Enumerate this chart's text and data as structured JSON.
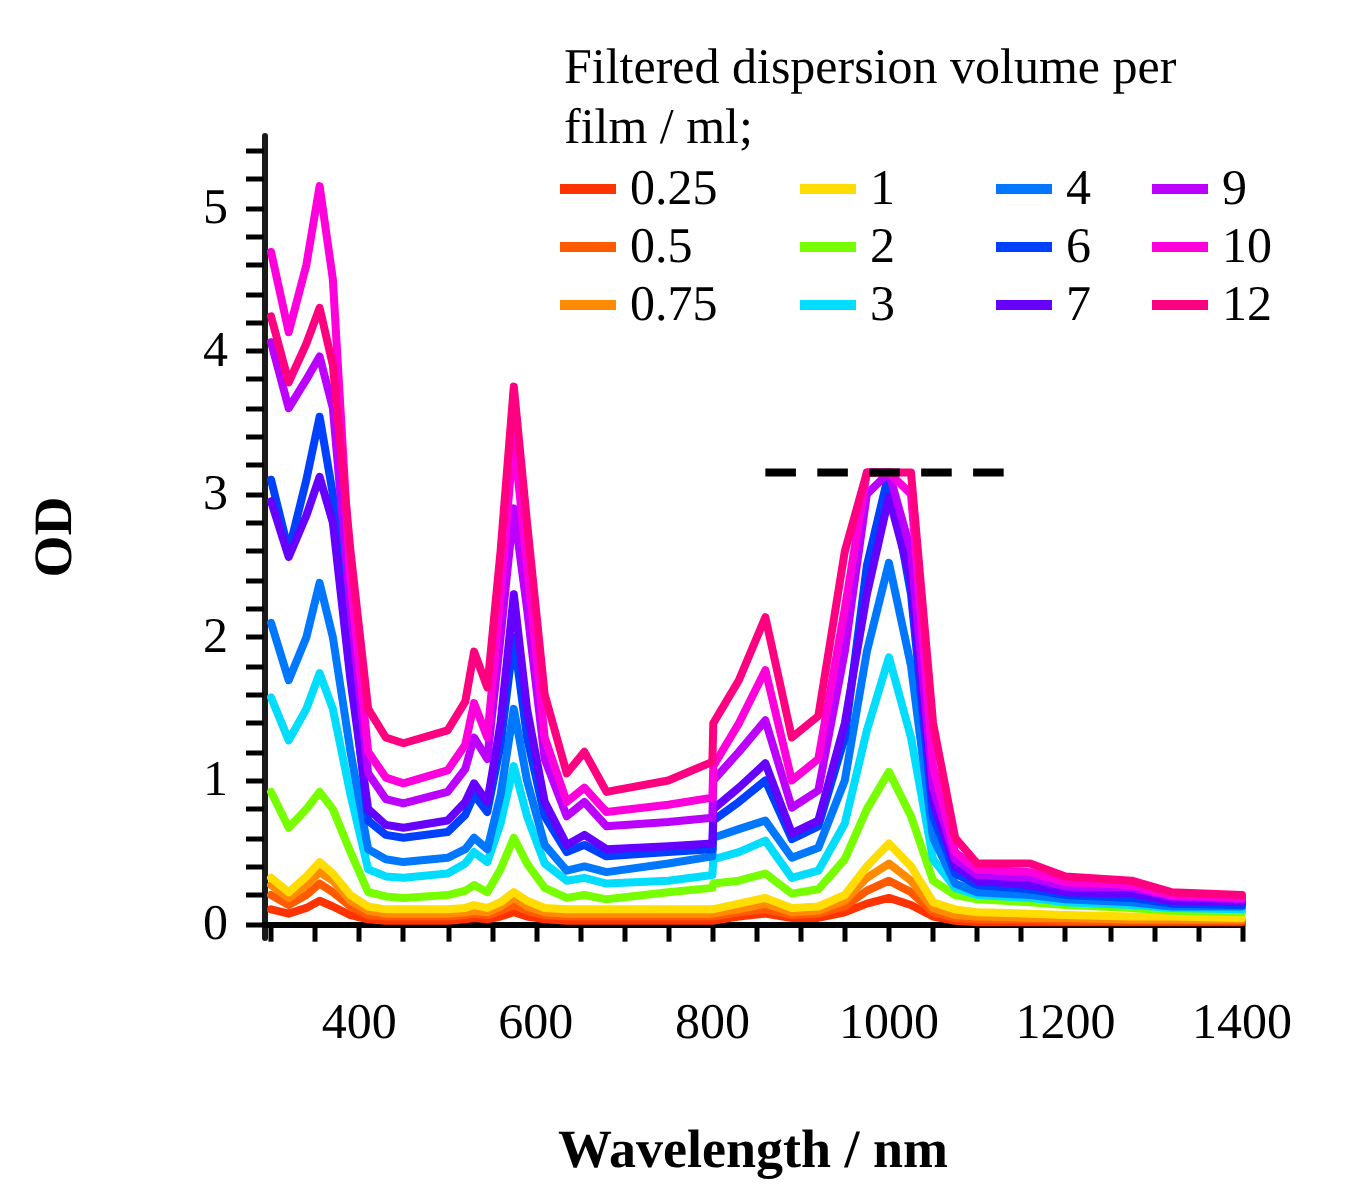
{
  "chart_data": {
    "type": "line",
    "xlabel": "Wavelength / nm",
    "ylabel": "OD",
    "legend_title": "Filtered dispersion volume per film / ml;",
    "legend": "top right",
    "grid": false,
    "marker": "none",
    "line_style": "solid",
    "x": [
      300,
      320,
      340,
      355,
      370,
      390,
      410,
      430,
      450,
      500,
      520,
      530,
      545,
      560,
      575,
      590,
      610,
      635,
      655,
      680,
      750,
      800,
      801,
      830,
      860,
      890,
      920,
      950,
      975,
      1000,
      1025,
      1050,
      1075,
      1100,
      1160,
      1200,
      1275,
      1320,
      1400
    ],
    "xlim": [
      292,
      1400
    ],
    "xticks": [
      {
        "value": 300,
        "label": null
      },
      {
        "value": 350,
        "label": null
      },
      400,
      {
        "value": 450,
        "label": null
      },
      {
        "value": 500,
        "label": null
      },
      {
        "value": 550,
        "label": null
      },
      600,
      {
        "value": 650,
        "label": null
      },
      {
        "value": 700,
        "label": null
      },
      {
        "value": 750,
        "label": null
      },
      800,
      {
        "value": 850,
        "label": null
      },
      {
        "value": 900,
        "label": null
      },
      {
        "value": 950,
        "label": null
      },
      1000,
      {
        "value": 1050,
        "label": null
      },
      {
        "value": 1100,
        "label": null
      },
      {
        "value": 1150,
        "label": null
      },
      1200,
      {
        "value": 1250,
        "label": null
      },
      {
        "value": 1300,
        "label": null
      },
      {
        "value": 1350,
        "label": null
      },
      1400
    ],
    "ylim": [
      -0.1,
      5.5
    ],
    "yticks": [
      0,
      {
        "value": 0.2,
        "label": null
      },
      {
        "value": 0.4,
        "label": null
      },
      {
        "value": 0.6,
        "label": null
      },
      {
        "value": 0.8,
        "label": null
      },
      1,
      {
        "value": 1.2,
        "label": null
      },
      {
        "value": 1.4,
        "label": null
      },
      {
        "value": 1.6,
        "label": null
      },
      {
        "value": 1.8,
        "label": null
      },
      2,
      {
        "value": 2.2,
        "label": null
      },
      {
        "value": 2.4,
        "label": null
      },
      {
        "value": 2.6,
        "label": null
      },
      {
        "value": 2.8,
        "label": null
      },
      3,
      {
        "value": 3.2,
        "label": null
      },
      {
        "value": 3.4,
        "label": null
      },
      {
        "value": 3.6,
        "label": null
      },
      {
        "value": 3.8,
        "label": null
      },
      4,
      {
        "value": 4.2,
        "label": null
      },
      {
        "value": 4.4,
        "label": null
      },
      {
        "value": 4.6,
        "label": null
      },
      {
        "value": 4.8,
        "label": null
      },
      5,
      {
        "value": 5.2,
        "label": null
      },
      {
        "value": 5.4,
        "label": null
      }
    ],
    "series": [
      {
        "name": "0.25",
        "color": "#ff3300",
        "values": [
          0.1,
          0.07,
          0.11,
          0.16,
          0.12,
          0.06,
          0.03,
          0.02,
          0.02,
          0.02,
          0.03,
          0.04,
          0.03,
          0.05,
          0.08,
          0.05,
          0.03,
          0.02,
          0.02,
          0.02,
          0.02,
          0.02,
          0.02,
          0.05,
          0.07,
          0.04,
          0.04,
          0.08,
          0.14,
          0.18,
          0.13,
          0.05,
          0.02,
          0.01,
          0.01,
          0.01,
          0.01,
          0.01,
          0.01
        ]
      },
      {
        "name": "0.5",
        "color": "#ff5a00",
        "values": [
          0.2,
          0.13,
          0.2,
          0.28,
          0.22,
          0.12,
          0.06,
          0.05,
          0.05,
          0.05,
          0.06,
          0.07,
          0.06,
          0.09,
          0.13,
          0.09,
          0.06,
          0.05,
          0.05,
          0.05,
          0.05,
          0.05,
          0.05,
          0.08,
          0.1,
          0.06,
          0.07,
          0.12,
          0.23,
          0.3,
          0.22,
          0.08,
          0.04,
          0.03,
          0.03,
          0.02,
          0.02,
          0.02,
          0.02
        ]
      },
      {
        "name": "0.75",
        "color": "#ff8c00",
        "values": [
          0.27,
          0.18,
          0.27,
          0.36,
          0.3,
          0.16,
          0.09,
          0.07,
          0.07,
          0.07,
          0.08,
          0.09,
          0.08,
          0.12,
          0.18,
          0.12,
          0.08,
          0.07,
          0.07,
          0.07,
          0.07,
          0.07,
          0.07,
          0.1,
          0.14,
          0.08,
          0.09,
          0.16,
          0.32,
          0.42,
          0.3,
          0.11,
          0.06,
          0.05,
          0.04,
          0.04,
          0.03,
          0.03,
          0.03
        ]
      },
      {
        "name": "1",
        "color": "#ffdd00",
        "values": [
          0.32,
          0.22,
          0.33,
          0.43,
          0.35,
          0.2,
          0.12,
          0.1,
          0.1,
          0.1,
          0.11,
          0.13,
          0.11,
          0.15,
          0.22,
          0.16,
          0.11,
          0.1,
          0.1,
          0.1,
          0.1,
          0.1,
          0.1,
          0.14,
          0.18,
          0.11,
          0.12,
          0.2,
          0.4,
          0.56,
          0.4,
          0.15,
          0.1,
          0.08,
          0.07,
          0.06,
          0.05,
          0.05,
          0.04
        ]
      },
      {
        "name": "2",
        "color": "#77ff00",
        "values": [
          0.92,
          0.67,
          0.8,
          0.92,
          0.8,
          0.5,
          0.22,
          0.19,
          0.18,
          0.2,
          0.23,
          0.27,
          0.22,
          0.38,
          0.6,
          0.42,
          0.25,
          0.18,
          0.2,
          0.17,
          0.22,
          0.25,
          0.28,
          0.3,
          0.35,
          0.21,
          0.24,
          0.45,
          0.8,
          1.06,
          0.75,
          0.3,
          0.2,
          0.17,
          0.15,
          0.13,
          0.11,
          0.09,
          0.08
        ]
      },
      {
        "name": "3",
        "color": "#00ddff",
        "values": [
          1.58,
          1.28,
          1.5,
          1.75,
          1.5,
          0.9,
          0.38,
          0.33,
          0.32,
          0.35,
          0.42,
          0.5,
          0.43,
          0.7,
          1.1,
          0.75,
          0.42,
          0.3,
          0.32,
          0.28,
          0.3,
          0.34,
          0.45,
          0.5,
          0.58,
          0.32,
          0.37,
          0.7,
          1.35,
          1.86,
          1.3,
          0.45,
          0.25,
          0.2,
          0.18,
          0.15,
          0.13,
          0.11,
          0.1
        ]
      },
      {
        "name": "4",
        "color": "#0077ff",
        "values": [
          2.1,
          1.7,
          2.0,
          2.38,
          2.0,
          1.2,
          0.52,
          0.45,
          0.43,
          0.46,
          0.52,
          0.6,
          0.52,
          0.9,
          1.5,
          1.0,
          0.55,
          0.37,
          0.4,
          0.36,
          0.42,
          0.47,
          0.6,
          0.66,
          0.72,
          0.46,
          0.53,
          1.0,
          1.9,
          2.52,
          1.8,
          0.6,
          0.28,
          0.22,
          0.2,
          0.17,
          0.15,
          0.12,
          0.12
        ]
      },
      {
        "name": "6",
        "color": "#0040ff",
        "values": [
          3.1,
          2.6,
          3.1,
          3.54,
          3.0,
          1.8,
          0.72,
          0.62,
          0.6,
          0.64,
          0.76,
          0.9,
          0.78,
          1.25,
          2.0,
          1.3,
          0.75,
          0.5,
          0.55,
          0.47,
          0.5,
          0.52,
          0.72,
          0.85,
          1.0,
          0.59,
          0.68,
          1.3,
          2.5,
          3.15,
          2.3,
          0.75,
          0.35,
          0.27,
          0.24,
          0.2,
          0.18,
          0.14,
          0.13
        ]
      },
      {
        "name": "7",
        "color": "#6600ff",
        "values": [
          2.95,
          2.56,
          2.85,
          3.12,
          2.8,
          1.7,
          0.8,
          0.69,
          0.67,
          0.72,
          0.85,
          0.98,
          0.85,
          1.4,
          2.3,
          1.5,
          0.85,
          0.55,
          0.62,
          0.52,
          0.54,
          0.56,
          0.8,
          0.95,
          1.12,
          0.63,
          0.72,
          1.4,
          2.3,
          2.98,
          2.4,
          0.85,
          0.4,
          0.3,
          0.27,
          0.22,
          0.21,
          0.16,
          0.15
        ]
      },
      {
        "name": "9",
        "color": "#bb00ff",
        "values": [
          4.06,
          3.6,
          3.8,
          3.96,
          3.6,
          2.2,
          1.05,
          0.87,
          0.84,
          0.92,
          1.08,
          1.3,
          1.15,
          2.0,
          2.9,
          2.2,
          1.15,
          0.75,
          0.85,
          0.68,
          0.71,
          0.74,
          1.0,
          1.2,
          1.42,
          0.81,
          0.93,
          1.9,
          3.0,
          3.15,
          2.6,
          0.95,
          0.45,
          0.34,
          0.32,
          0.26,
          0.25,
          0.19,
          0.17
        ]
      },
      {
        "name": "10",
        "color": "#ff00dd",
        "values": [
          4.69,
          4.13,
          4.6,
          5.15,
          4.5,
          2.4,
          1.2,
          1.02,
          0.98,
          1.07,
          1.25,
          1.54,
          1.3,
          2.3,
          3.4,
          2.5,
          1.3,
          0.85,
          0.95,
          0.78,
          0.83,
          0.88,
          1.1,
          1.4,
          1.77,
          1.0,
          1.15,
          2.2,
          3.15,
          3.15,
          3.0,
          1.1,
          0.5,
          0.38,
          0.36,
          0.29,
          0.27,
          0.2,
          0.18
        ]
      },
      {
        "name": "12",
        "color": "#ff0080",
        "values": [
          4.24,
          3.78,
          4.05,
          4.3,
          3.9,
          2.6,
          1.5,
          1.3,
          1.26,
          1.35,
          1.55,
          1.9,
          1.65,
          2.6,
          3.75,
          2.8,
          1.6,
          1.05,
          1.2,
          0.92,
          1.0,
          1.13,
          1.4,
          1.7,
          2.14,
          1.3,
          1.45,
          2.6,
          3.15,
          3.15,
          3.15,
          1.4,
          0.6,
          0.42,
          0.42,
          0.33,
          0.3,
          0.22,
          0.2
        ]
      },
      {
        "color": "#000000",
        "line_style": "dashed",
        "x": [
          860,
          1130
        ],
        "values": [
          3.15,
          3.15
        ]
      }
    ]
  }
}
